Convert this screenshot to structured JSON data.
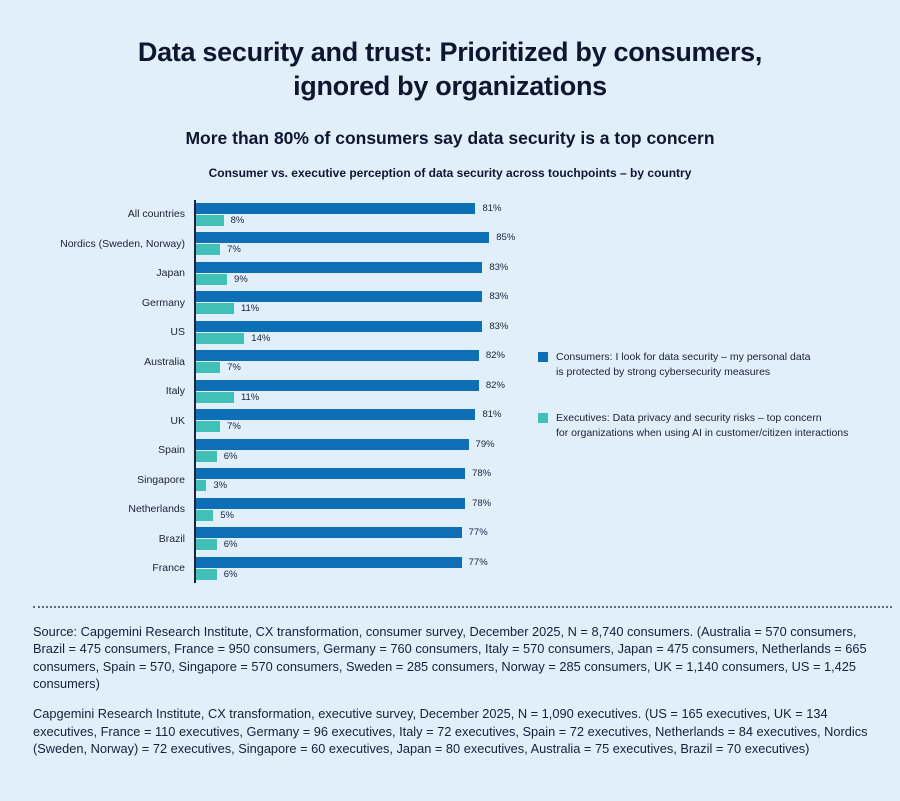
{
  "page": {
    "title": "Data security and trust: Prioritized by consumers,\nignored by organizations",
    "subtitle": "More than 80% of consumers say data security is a top concern",
    "chart_title": "Consumer vs. executive perception of data security across touchpoints – by country"
  },
  "colors": {
    "background": "#E0EFFA",
    "consumer_bar": "#0F6FB6",
    "executive_bar": "#41C0B7",
    "axis": "#16233E",
    "text": "#121A33"
  },
  "legend": {
    "consumers": "Consumers: I look for data security – my personal data\nis protected by strong cybersecurity measures",
    "executives": "Executives: Data privacy and security risks – top concern\nfor organizations when using AI in customer/citizen interactions"
  },
  "chart_data": {
    "type": "bar",
    "orientation": "horizontal",
    "title": "Consumer vs. executive perception of data security across touchpoints – by country",
    "value_suffix": "%",
    "xlim": [
      0,
      100
    ],
    "grid": false,
    "legend_position": "right",
    "categories": [
      "All countries",
      "Nordics (Sweden, Norway)",
      "Japan",
      "Germany",
      "US",
      "Australia",
      "Italy",
      "UK",
      "Spain",
      "Singapore",
      "Netherlands",
      "Brazil",
      "France"
    ],
    "series": [
      {
        "name": "Consumers: I look for data security – my personal data is protected by strong cybersecurity measures",
        "color": "#0F6FB6",
        "values": [
          81,
          85,
          83,
          83,
          83,
          82,
          82,
          81,
          79,
          78,
          78,
          77,
          77
        ]
      },
      {
        "name": "Executives: Data privacy and security risks – top concern for organizations when using AI in customer/citizen interactions",
        "color": "#41C0B7",
        "values": [
          8,
          7,
          9,
          11,
          14,
          7,
          11,
          7,
          6,
          3,
          5,
          6,
          6
        ]
      }
    ]
  },
  "footnotes": {
    "consumer_survey": "Source: Capgemini Research Institute, CX transformation, consumer survey, December 2025, N = 8,740 consumers. (Australia = 570 consumers, Brazil = 475 consumers, France = 950 consumers, Germany = 760 consumers, Italy = 570 consumers, Japan = 475 consumers, Netherlands = 665 consumers, Spain = 570, Singapore = 570 consumers, Sweden = 285 consumers, Norway = 285 consumers, UK = 1,140 consumers, US = 1,425 consumers)",
    "executive_survey": "Capgemini Research Institute, CX transformation, executive survey, December 2025, N = 1,090 executives. (US = 165 executives, UK = 134 executives, France = 110 executives, Germany = 96 executives, Italy = 72 executives, Spain = 72 executives, Netherlands = 84 executives, Nordics (Sweden, Norway) = 72 executives, Singapore = 60 executives, Japan = 80 executives, Australia = 75 executives, Brazil = 70 executives)"
  }
}
